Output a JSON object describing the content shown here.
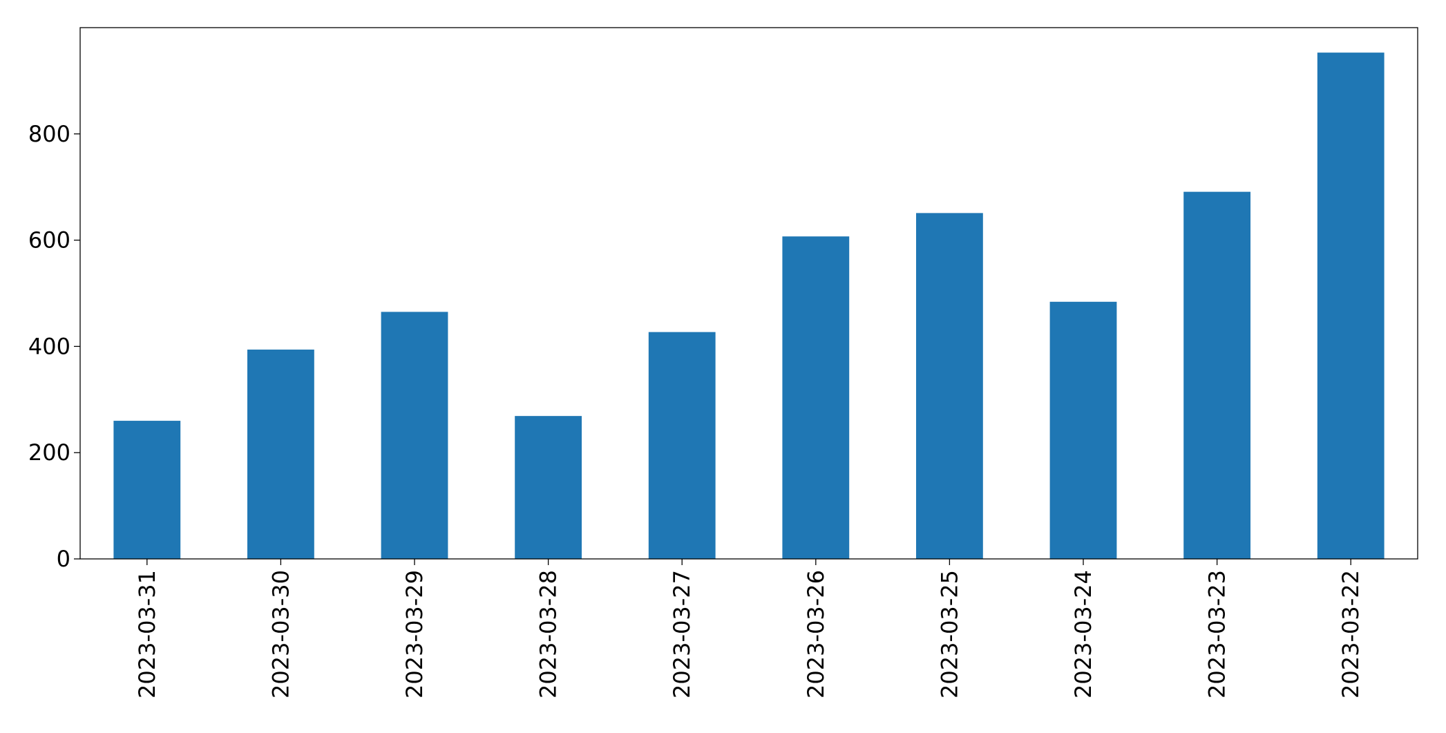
{
  "chart_data": {
    "type": "bar",
    "categories": [
      "2023-03-31",
      "2023-03-30",
      "2023-03-29",
      "2023-03-28",
      "2023-03-27",
      "2023-03-26",
      "2023-03-25",
      "2023-03-24",
      "2023-03-23",
      "2023-03-22"
    ],
    "values": [
      260,
      394,
      465,
      269,
      427,
      607,
      651,
      484,
      691,
      953
    ],
    "color": "#1f77b4",
    "ylim": [
      0,
      1000
    ],
    "yticks": [
      0,
      200,
      400,
      600,
      800
    ],
    "grid": false
  }
}
